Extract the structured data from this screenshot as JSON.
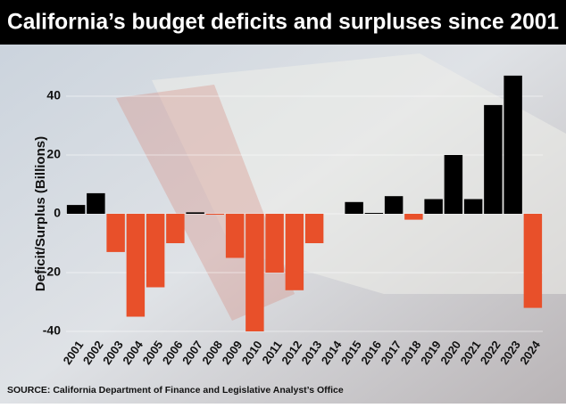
{
  "chart_data": {
    "type": "bar",
    "title": "California’s budget deficits and surpluses since 2001",
    "y_label": "Deficit/Surplus (Billions)",
    "source": "SOURCE: California Department of Finance and Legislative Analyst’s Office",
    "categories": [
      "2001",
      "2002",
      "2003",
      "2004",
      "2005",
      "2006",
      "2007",
      "2008",
      "2009",
      "2010",
      "2011",
      "2012",
      "2013",
      "2014",
      "2015",
      "2016",
      "2017",
      "2018",
      "2019",
      "2020",
      "2021",
      "2022",
      "2023",
      "2024"
    ],
    "values": [
      3,
      7,
      -13,
      -35,
      -25,
      -10,
      0.5,
      -0.3,
      -15,
      -40,
      -20,
      -26,
      -10,
      0,
      4,
      0.3,
      6,
      -2,
      5,
      20,
      5,
      37,
      47,
      -32
    ],
    "positive_color": "#000000",
    "negative_color": "#e8502a",
    "ylim": [
      -42,
      50
    ],
    "yticks": [
      -40,
      -20,
      0,
      20,
      40
    ],
    "grid": true
  }
}
